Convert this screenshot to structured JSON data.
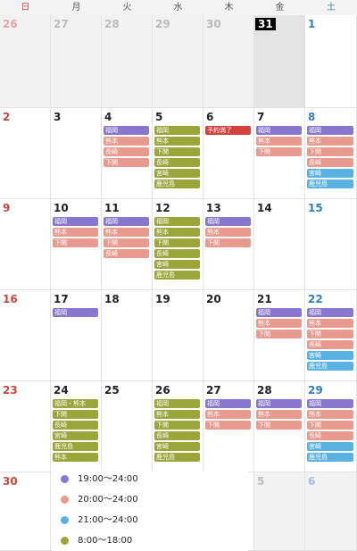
{
  "colors": {
    "purple": "#8877cf",
    "salmon": "#e89a8f",
    "olive": "#9ba63a",
    "blue": "#5ab2e2",
    "red": "#d2413a"
  },
  "weekdays": [
    "日",
    "月",
    "火",
    "水",
    "木",
    "金",
    "土"
  ],
  "today": 31,
  "weeks": [
    [
      {
        "day": "26",
        "other": true,
        "events": []
      },
      {
        "day": "27",
        "other": true,
        "events": []
      },
      {
        "day": "28",
        "other": true,
        "events": []
      },
      {
        "day": "29",
        "other": true,
        "events": []
      },
      {
        "day": "30",
        "other": true,
        "events": []
      },
      {
        "day": "31",
        "selected": true,
        "events": []
      },
      {
        "day": "1",
        "events": []
      }
    ],
    [
      {
        "day": "2",
        "events": []
      },
      {
        "day": "3",
        "events": []
      },
      {
        "day": "4",
        "events": [
          {
            "label": "福岡",
            "color": "purple"
          },
          {
            "label": "熊本",
            "color": "salmon"
          },
          {
            "label": "長崎",
            "color": "salmon"
          },
          {
            "label": "下関",
            "color": "salmon"
          }
        ]
      },
      {
        "day": "5",
        "events": [
          {
            "label": "福岡",
            "color": "olive"
          },
          {
            "label": "熊本",
            "color": "olive"
          },
          {
            "label": "下関",
            "color": "olive"
          },
          {
            "label": "長崎",
            "color": "olive"
          },
          {
            "label": "宮崎",
            "color": "olive"
          },
          {
            "label": "鹿児島",
            "color": "olive"
          }
        ]
      },
      {
        "day": "6",
        "events": [
          {
            "label": "予約満了",
            "color": "red"
          }
        ]
      },
      {
        "day": "7",
        "events": [
          {
            "label": "福岡",
            "color": "purple"
          },
          {
            "label": "熊本",
            "color": "salmon"
          },
          {
            "label": "下関",
            "color": "salmon"
          }
        ]
      },
      {
        "day": "8",
        "events": [
          {
            "label": "福岡",
            "color": "purple"
          },
          {
            "label": "熊本",
            "color": "salmon"
          },
          {
            "label": "下関",
            "color": "salmon"
          },
          {
            "label": "長崎",
            "color": "salmon"
          },
          {
            "label": "宮崎",
            "color": "blue"
          },
          {
            "label": "鹿児島",
            "color": "blue"
          }
        ]
      }
    ],
    [
      {
        "day": "9",
        "events": []
      },
      {
        "day": "10",
        "events": [
          {
            "label": "福岡",
            "color": "purple"
          },
          {
            "label": "熊本",
            "color": "salmon"
          },
          {
            "label": "下関",
            "color": "salmon"
          }
        ]
      },
      {
        "day": "11",
        "events": [
          {
            "label": "福岡",
            "color": "purple"
          },
          {
            "label": "熊本",
            "color": "salmon"
          },
          {
            "label": "下関",
            "color": "salmon"
          },
          {
            "label": "長崎",
            "color": "salmon"
          }
        ]
      },
      {
        "day": "12",
        "events": [
          {
            "label": "福岡",
            "color": "olive"
          },
          {
            "label": "熊本",
            "color": "olive"
          },
          {
            "label": "下関",
            "color": "olive"
          },
          {
            "label": "長崎",
            "color": "olive"
          },
          {
            "label": "宮崎",
            "color": "olive"
          },
          {
            "label": "鹿児島",
            "color": "olive"
          }
        ]
      },
      {
        "day": "13",
        "events": [
          {
            "label": "福岡",
            "color": "purple"
          },
          {
            "label": "熊本",
            "color": "salmon"
          },
          {
            "label": "下関",
            "color": "salmon"
          }
        ]
      },
      {
        "day": "14",
        "events": []
      },
      {
        "day": "15",
        "events": []
      }
    ],
    [
      {
        "day": "16",
        "events": []
      },
      {
        "day": "17",
        "events": [
          {
            "label": "福岡",
            "color": "purple"
          }
        ]
      },
      {
        "day": "18",
        "events": []
      },
      {
        "day": "19",
        "events": []
      },
      {
        "day": "20",
        "events": []
      },
      {
        "day": "21",
        "events": [
          {
            "label": "福岡",
            "color": "purple"
          },
          {
            "label": "熊本",
            "color": "salmon"
          },
          {
            "label": "下関",
            "color": "salmon"
          }
        ]
      },
      {
        "day": "22",
        "events": [
          {
            "label": "福岡",
            "color": "purple"
          },
          {
            "label": "熊本",
            "color": "salmon"
          },
          {
            "label": "下関",
            "color": "salmon"
          },
          {
            "label": "長崎",
            "color": "salmon"
          },
          {
            "label": "宮崎",
            "color": "blue"
          },
          {
            "label": "鹿児島",
            "color": "blue"
          }
        ]
      }
    ],
    [
      {
        "day": "23",
        "events": []
      },
      {
        "day": "24",
        "events": [
          {
            "label": "福岡・熊本",
            "color": "olive"
          },
          {
            "label": "下関",
            "color": "olive"
          },
          {
            "label": "長崎",
            "color": "olive"
          },
          {
            "label": "宮崎",
            "color": "olive"
          },
          {
            "label": "鹿児島",
            "color": "olive"
          },
          {
            "label": "熊本",
            "color": "olive"
          }
        ]
      },
      {
        "day": "25",
        "events": []
      },
      {
        "day": "26",
        "events": [
          {
            "label": "福岡",
            "color": "olive"
          },
          {
            "label": "熊本",
            "color": "olive"
          },
          {
            "label": "下関",
            "color": "olive"
          },
          {
            "label": "長崎",
            "color": "olive"
          },
          {
            "label": "宮崎",
            "color": "olive"
          },
          {
            "label": "鹿児島",
            "color": "olive"
          }
        ]
      },
      {
        "day": "27",
        "events": [
          {
            "label": "福岡",
            "color": "purple"
          },
          {
            "label": "熊本",
            "color": "salmon"
          },
          {
            "label": "下関",
            "color": "salmon"
          }
        ]
      },
      {
        "day": "28",
        "events": [
          {
            "label": "福岡",
            "color": "purple"
          },
          {
            "label": "熊本",
            "color": "salmon"
          },
          {
            "label": "下関",
            "color": "salmon"
          }
        ]
      },
      {
        "day": "29",
        "events": [
          {
            "label": "福岡",
            "color": "purple"
          },
          {
            "label": "熊本",
            "color": "salmon"
          },
          {
            "label": "下関",
            "color": "salmon"
          },
          {
            "label": "長崎",
            "color": "salmon"
          },
          {
            "label": "宮崎",
            "color": "blue"
          },
          {
            "label": "鹿児島",
            "color": "blue"
          }
        ]
      }
    ],
    [
      {
        "day": "30",
        "events": []
      },
      {
        "day": "",
        "events": []
      },
      {
        "day": "",
        "events": []
      },
      {
        "day": "",
        "events": []
      },
      {
        "day": "",
        "events": []
      },
      {
        "day": "5",
        "other": true,
        "events": []
      },
      {
        "day": "6",
        "other": true,
        "events": []
      }
    ]
  ],
  "legend": [
    {
      "color": "purple",
      "text": "19:00～24:00"
    },
    {
      "color": "salmon",
      "text": "20:00～24:00"
    },
    {
      "color": "blue",
      "text": "21:00～24:00"
    },
    {
      "color": "olive",
      "text": "8:00～18:00"
    }
  ]
}
